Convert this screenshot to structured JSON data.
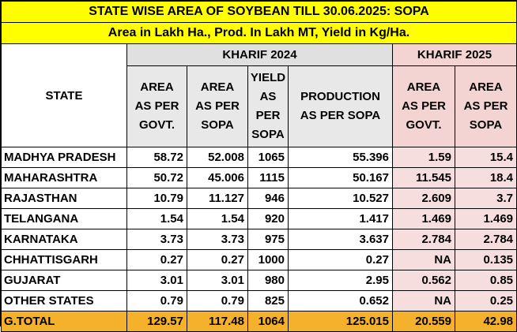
{
  "title": "STATE WISE AREA OF SOYBEAN TILL 30.06.2025: SOPA",
  "subtitle": "Area in Lakh Ha., Prod. In Lakh MT, Yield in Kg/Ha.",
  "groups": {
    "kharif2024": "KHARIF 2024",
    "kharif2025": "KHARIF 2025"
  },
  "headers": {
    "state": "STATE",
    "area_govt_2024": [
      "AREA",
      "AS PER",
      "GOVT."
    ],
    "area_sopa_2024": [
      "AREA",
      "AS PER",
      "SOPA"
    ],
    "yield_sopa": [
      "YIELD",
      "AS",
      "PER",
      "SOPA"
    ],
    "production_sopa": [
      "PRODUCTION",
      "AS PER SOPA"
    ],
    "area_govt_2025": [
      "AREA",
      "AS PER",
      "GOVT."
    ],
    "area_sopa_2025": [
      "AREA",
      "AS PER",
      "SOPA"
    ]
  },
  "rows": [
    [
      "MADHYA PRADESH",
      "58.72",
      "52.008",
      "1065",
      "55.396",
      "1.59",
      "15.4"
    ],
    [
      "MAHARASHTRA",
      "50.72",
      "45.006",
      "1115",
      "50.167",
      "11.545",
      "18.4"
    ],
    [
      "RAJASTHAN",
      "10.79",
      "11.127",
      "946",
      "10.527",
      "2.609",
      "3.7"
    ],
    [
      "TELANGANA",
      "1.54",
      "1.54",
      "920",
      "1.417",
      "1.469",
      "1.469"
    ],
    [
      "KARNATAKA",
      "3.73",
      "3.73",
      "975",
      "3.637",
      "2.784",
      "2.784"
    ],
    [
      "CHHATTISGARH",
      "0.27",
      "0.27",
      "1000",
      "0.27",
      "NA",
      "0.135"
    ],
    [
      "GUJARAT",
      "3.01",
      "3.01",
      "980",
      "2.95",
      "0.562",
      "0.85"
    ],
    [
      "OTHER STATES",
      "0.79",
      "0.79",
      "825",
      "0.652",
      "NA",
      "0.25"
    ]
  ],
  "total": [
    "G.TOTAL",
    "129.57",
    "117.48",
    "1064",
    "125.015",
    "20.559",
    "42.98"
  ],
  "colors": {
    "title_bg": "#ffff00",
    "kharif2024_bg": "#e0e0e0",
    "kharif2025_bg": "#f4d3d3",
    "total_bg": "#f5b12b"
  }
}
